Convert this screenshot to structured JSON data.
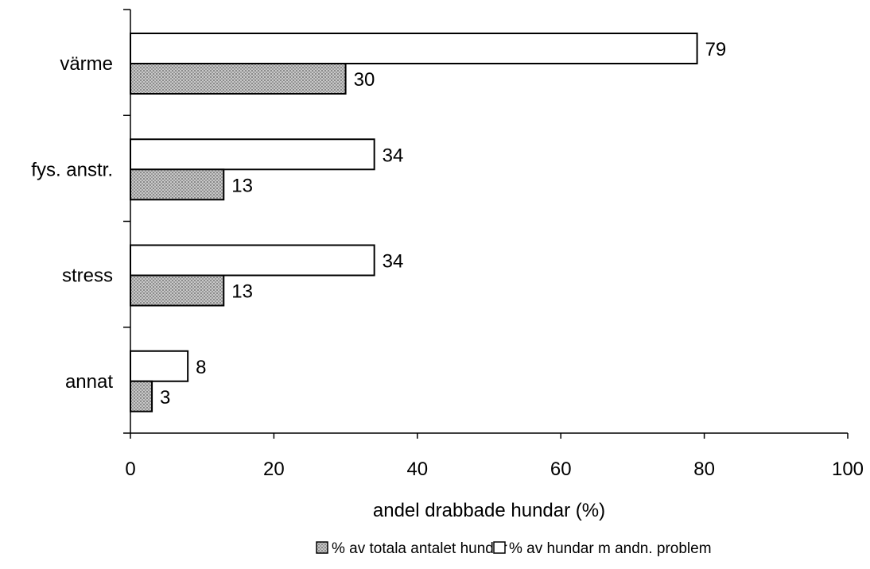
{
  "chart_data": {
    "type": "bar",
    "orientation": "horizontal",
    "categories": [
      "värme",
      "fys. anstr.",
      "stress",
      "annat"
    ],
    "series": [
      {
        "name": "% av totala antalet hundar",
        "values": [
          30,
          13,
          13,
          3
        ],
        "color": "#b3b3b3",
        "pattern": "dotted"
      },
      {
        "name": "% av hundar m andn. problem",
        "values": [
          79,
          34,
          34,
          8
        ],
        "color": "#ffffff"
      }
    ],
    "xlabel": "andel drabbade hundar (%)",
    "ylabel": "",
    "title": "",
    "xlim": [
      0,
      100
    ],
    "xticks": [
      0,
      20,
      40,
      60,
      80,
      100
    ],
    "grid": false,
    "legend": "bottom"
  }
}
